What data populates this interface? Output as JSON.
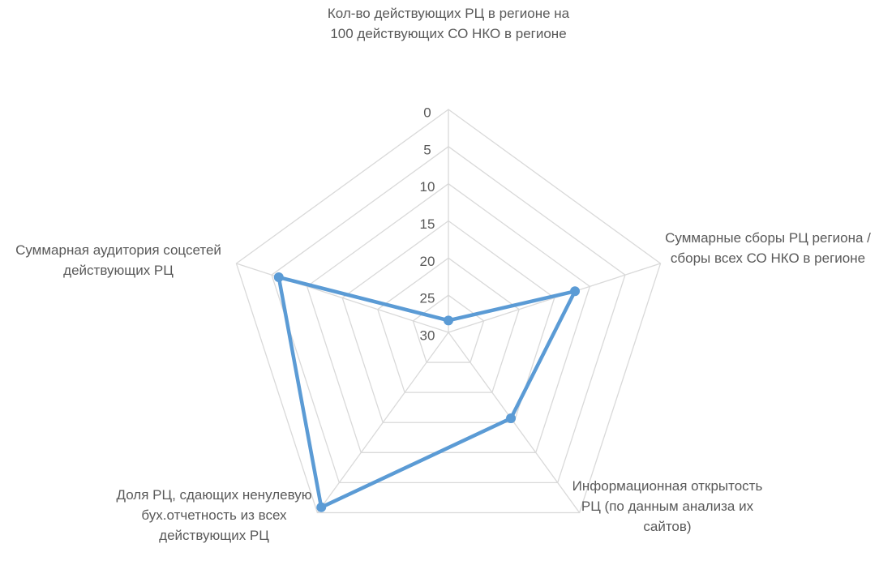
{
  "chart_data": {
    "type": "radar",
    "categories": [
      "Кол-во действующих РЦ в регионе на 100 действующих СО НКО в регионе",
      "Суммарные сборы РЦ региона / сборы всех СО НКО в регионе",
      "Информационная открытость РЦ (по данным анализа их сайтов)",
      "Доля РЦ, сдающих ненулевую бух.отчетность из всех действующих РЦ",
      "Суммарная аудитория соцсетей действующих РЦ"
    ],
    "series": [
      {
        "color": "#5b9bd5",
        "values": [
          28.4,
          12.1,
          15.7,
          0.9,
          6.0
        ]
      }
    ],
    "ylim": [
      0,
      30
    ],
    "yticks": [
      0,
      5,
      10,
      15,
      20,
      25,
      30
    ],
    "reversed": true,
    "grid": true
  }
}
